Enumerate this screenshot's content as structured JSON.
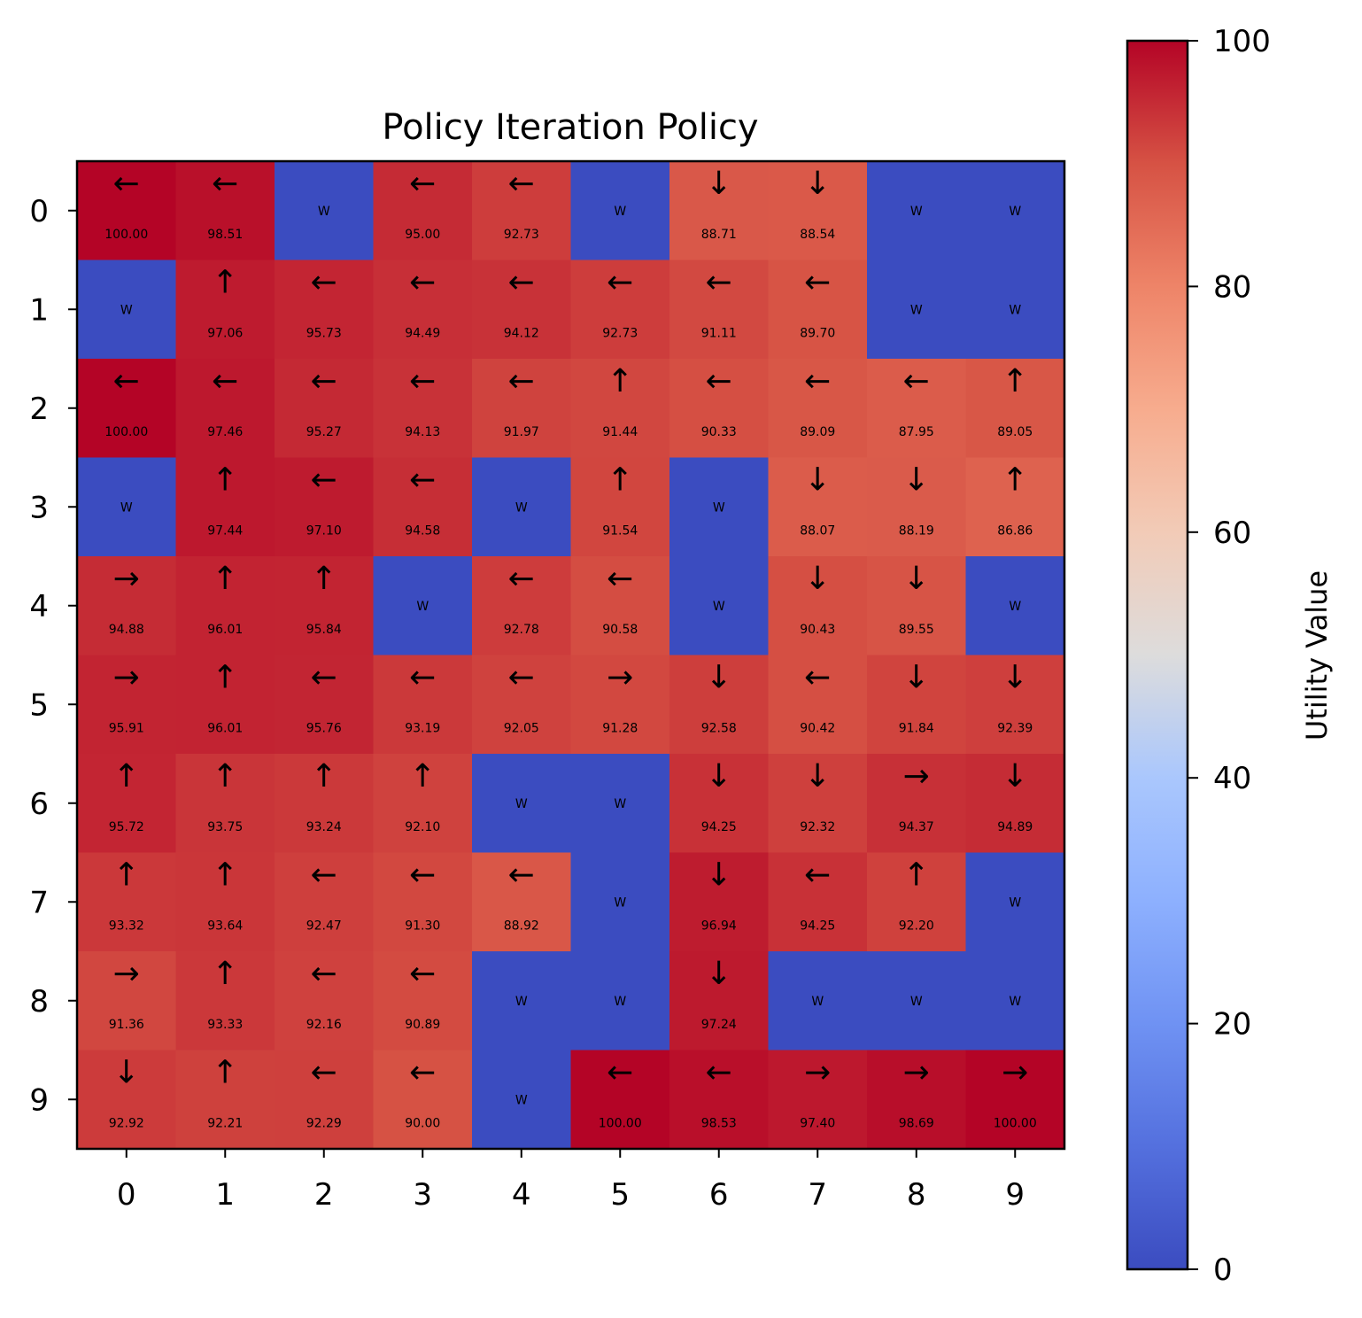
{
  "chart_data": {
    "type": "heatmap",
    "title": "Policy Iteration Policy",
    "xlabel": "",
    "ylabel": "",
    "x_ticks": [
      "0",
      "1",
      "2",
      "3",
      "4",
      "5",
      "6",
      "7",
      "8",
      "9"
    ],
    "y_ticks": [
      "0",
      "1",
      "2",
      "3",
      "4",
      "5",
      "6",
      "7",
      "8",
      "9"
    ],
    "wall_label": "W",
    "colormap": "coolwarm",
    "color_low": "#3b4cc0",
    "color_high": "#b40426",
    "colorbar": {
      "label": "Utility Value",
      "range": [
        0,
        100
      ],
      "ticks": [
        "0",
        "20",
        "40",
        "60",
        "80",
        "100"
      ]
    },
    "rows": [
      [
        {
          "a": "←",
          "v": "100.00",
          "u": 100.0
        },
        {
          "a": "←",
          "v": "98.51",
          "u": 98.51
        },
        {
          "w": true
        },
        {
          "a": "←",
          "v": "95.00",
          "u": 95.0
        },
        {
          "a": "←",
          "v": "92.73",
          "u": 92.73
        },
        {
          "w": true
        },
        {
          "a": "↓",
          "v": "88.71",
          "u": 88.71
        },
        {
          "a": "↓",
          "v": "88.54",
          "u": 88.54
        },
        {
          "w": true
        },
        {
          "w": true
        }
      ],
      [
        {
          "w": true
        },
        {
          "a": "↑",
          "v": "97.06",
          "u": 97.06
        },
        {
          "a": "←",
          "v": "95.73",
          "u": 95.73
        },
        {
          "a": "←",
          "v": "94.49",
          "u": 94.49
        },
        {
          "a": "←",
          "v": "94.12",
          "u": 94.12
        },
        {
          "a": "←",
          "v": "92.73",
          "u": 92.73
        },
        {
          "a": "←",
          "v": "91.11",
          "u": 91.11
        },
        {
          "a": "←",
          "v": "89.70",
          "u": 89.7
        },
        {
          "w": true
        },
        {
          "w": true
        }
      ],
      [
        {
          "a": "←",
          "v": "100.00",
          "u": 100.0
        },
        {
          "a": "←",
          "v": "97.46",
          "u": 97.46
        },
        {
          "a": "←",
          "v": "95.27",
          "u": 95.27
        },
        {
          "a": "←",
          "v": "94.13",
          "u": 94.13
        },
        {
          "a": "←",
          "v": "91.97",
          "u": 91.97
        },
        {
          "a": "↑",
          "v": "91.44",
          "u": 91.44
        },
        {
          "a": "←",
          "v": "90.33",
          "u": 90.33
        },
        {
          "a": "←",
          "v": "89.09",
          "u": 89.09
        },
        {
          "a": "←",
          "v": "87.95",
          "u": 87.95
        },
        {
          "a": "↑",
          "v": "89.05",
          "u": 89.05
        }
      ],
      [
        {
          "w": true
        },
        {
          "a": "↑",
          "v": "97.44",
          "u": 97.44
        },
        {
          "a": "←",
          "v": "97.10",
          "u": 97.1
        },
        {
          "a": "←",
          "v": "94.58",
          "u": 94.58
        },
        {
          "w": true
        },
        {
          "a": "↑",
          "v": "91.54",
          "u": 91.54
        },
        {
          "w": true
        },
        {
          "a": "↓",
          "v": "88.07",
          "u": 88.07
        },
        {
          "a": "↓",
          "v": "88.19",
          "u": 88.19
        },
        {
          "a": "↑",
          "v": "86.86",
          "u": 86.86
        }
      ],
      [
        {
          "a": "→",
          "v": "94.88",
          "u": 94.88
        },
        {
          "a": "↑",
          "v": "96.01",
          "u": 96.01
        },
        {
          "a": "↑",
          "v": "95.84",
          "u": 95.84
        },
        {
          "w": true
        },
        {
          "a": "←",
          "v": "92.78",
          "u": 92.78
        },
        {
          "a": "←",
          "v": "90.58",
          "u": 90.58
        },
        {
          "w": true
        },
        {
          "a": "↓",
          "v": "90.43",
          "u": 90.43
        },
        {
          "a": "↓",
          "v": "89.55",
          "u": 89.55
        },
        {
          "w": true
        }
      ],
      [
        {
          "a": "→",
          "v": "95.91",
          "u": 95.91
        },
        {
          "a": "↑",
          "v": "96.01",
          "u": 96.01
        },
        {
          "a": "←",
          "v": "95.76",
          "u": 95.76
        },
        {
          "a": "←",
          "v": "93.19",
          "u": 93.19
        },
        {
          "a": "←",
          "v": "92.05",
          "u": 92.05
        },
        {
          "a": "→",
          "v": "91.28",
          "u": 91.28
        },
        {
          "a": "↓",
          "v": "92.58",
          "u": 92.58
        },
        {
          "a": "←",
          "v": "90.42",
          "u": 90.42
        },
        {
          "a": "↓",
          "v": "91.84",
          "u": 91.84
        },
        {
          "a": "↓",
          "v": "92.39",
          "u": 92.39
        }
      ],
      [
        {
          "a": "↑",
          "v": "95.72",
          "u": 95.72
        },
        {
          "a": "↑",
          "v": "93.75",
          "u": 93.75
        },
        {
          "a": "↑",
          "v": "93.24",
          "u": 93.24
        },
        {
          "a": "↑",
          "v": "92.10",
          "u": 92.1
        },
        {
          "w": true
        },
        {
          "w": true
        },
        {
          "a": "↓",
          "v": "94.25",
          "u": 94.25
        },
        {
          "a": "↓",
          "v": "92.32",
          "u": 92.32
        },
        {
          "a": "→",
          "v": "94.37",
          "u": 94.37
        },
        {
          "a": "↓",
          "v": "94.89",
          "u": 94.89
        }
      ],
      [
        {
          "a": "↑",
          "v": "93.32",
          "u": 93.32
        },
        {
          "a": "↑",
          "v": "93.64",
          "u": 93.64
        },
        {
          "a": "←",
          "v": "92.47",
          "u": 92.47
        },
        {
          "a": "←",
          "v": "91.30",
          "u": 91.3
        },
        {
          "a": "←",
          "v": "88.92",
          "u": 88.92
        },
        {
          "w": true
        },
        {
          "a": "↓",
          "v": "96.94",
          "u": 96.94
        },
        {
          "a": "←",
          "v": "94.25",
          "u": 94.25
        },
        {
          "a": "↑",
          "v": "92.20",
          "u": 92.2
        },
        {
          "w": true
        }
      ],
      [
        {
          "a": "→",
          "v": "91.36",
          "u": 91.36
        },
        {
          "a": "↑",
          "v": "93.33",
          "u": 93.33
        },
        {
          "a": "←",
          "v": "92.16",
          "u": 92.16
        },
        {
          "a": "←",
          "v": "90.89",
          "u": 90.89
        },
        {
          "w": true
        },
        {
          "w": true
        },
        {
          "a": "↓",
          "v": "97.24",
          "u": 97.24
        },
        {
          "w": true
        },
        {
          "w": true
        },
        {
          "w": true
        }
      ],
      [
        {
          "a": "↓",
          "v": "92.92",
          "u": 92.92
        },
        {
          "a": "↑",
          "v": "92.21",
          "u": 92.21
        },
        {
          "a": "←",
          "v": "92.29",
          "u": 92.29
        },
        {
          "a": "←",
          "v": "90.00",
          "u": 90.0
        },
        {
          "w": true
        },
        {
          "a": "←",
          "v": "100.00",
          "u": 100.0
        },
        {
          "a": "←",
          "v": "98.53",
          "u": 98.53
        },
        {
          "a": "→",
          "v": "97.40",
          "u": 97.4
        },
        {
          "a": "→",
          "v": "98.69",
          "u": 98.69
        },
        {
          "a": "→",
          "v": "100.00",
          "u": 100.0
        }
      ]
    ]
  }
}
